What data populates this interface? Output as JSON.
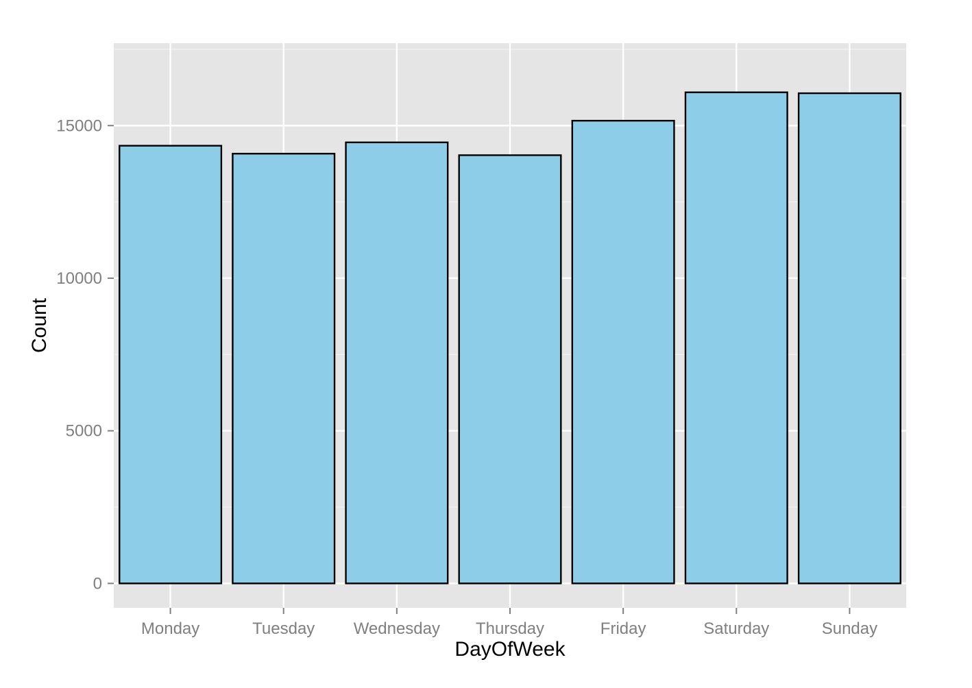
{
  "chart_data": {
    "type": "bar",
    "title": "",
    "xlabel": "DayOfWeek",
    "ylabel": "Count",
    "categories": [
      "Monday",
      "Tuesday",
      "Wednesday",
      "Thursday",
      "Friday",
      "Saturday",
      "Sunday"
    ],
    "values": [
      14340,
      14080,
      14450,
      14030,
      15160,
      16090,
      16060
    ],
    "ylim": [
      -800,
      17700
    ],
    "yticks": [
      0,
      5000,
      10000,
      15000
    ],
    "ytick_labels": [
      "0",
      "5000",
      "10000",
      "15000"
    ],
    "grid": true,
    "legend": "none",
    "colors": {
      "bar_fill": "#8ecde8",
      "bar_stroke": "#000000",
      "panel_background": "#e5e5e5",
      "grid_major": "#ffffff",
      "grid_minor": "#f2f2f2",
      "tick_text": "#7f7f7f",
      "axis_title_text": "#000000"
    }
  }
}
